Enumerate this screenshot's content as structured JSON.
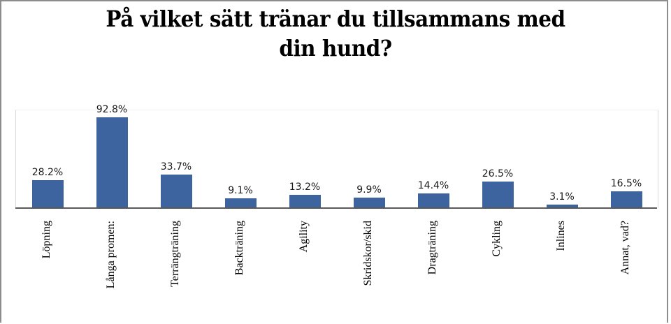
{
  "title_lines": [
    "På vilket sätt tränar du tillsammans med",
    "din hund?"
  ],
  "colors": {
    "bar": "#3e64a0",
    "axis": "#595959",
    "frame": "#8c8c8c"
  },
  "chart_data": {
    "type": "bar",
    "title": "På vilket sätt tränar du tillsammans med din hund?",
    "categories": [
      "Löpning",
      "Långa promenader",
      "Terrängträning",
      "Backträning",
      "Agility",
      "Skridskor/skidor",
      "Dragträning",
      "Cykling",
      "Inlines",
      "Annat, vad?"
    ],
    "category_labels_visible": [
      "Löpning",
      "Långa promen:",
      "Terrängträning",
      "Backträning",
      "Agility",
      "Skridskor/skid",
      "Dragträning",
      "Cykling",
      "Inlines",
      "Annat, vad?"
    ],
    "values": [
      28.2,
      92.8,
      33.7,
      9.1,
      13.2,
      9.9,
      14.4,
      26.5,
      3.1,
      16.5
    ],
    "value_labels": [
      "28.2%",
      "92.8%",
      "33.7%",
      "9.1%",
      "13.2%",
      "9.9%",
      "14.4%",
      "26.5%",
      "3.1%",
      "16.5%"
    ],
    "xlabel": "",
    "ylabel": "",
    "ylim": [
      0,
      100
    ],
    "grid": false,
    "legend": "none",
    "data_labels": true,
    "y_axis_visible": false
  }
}
